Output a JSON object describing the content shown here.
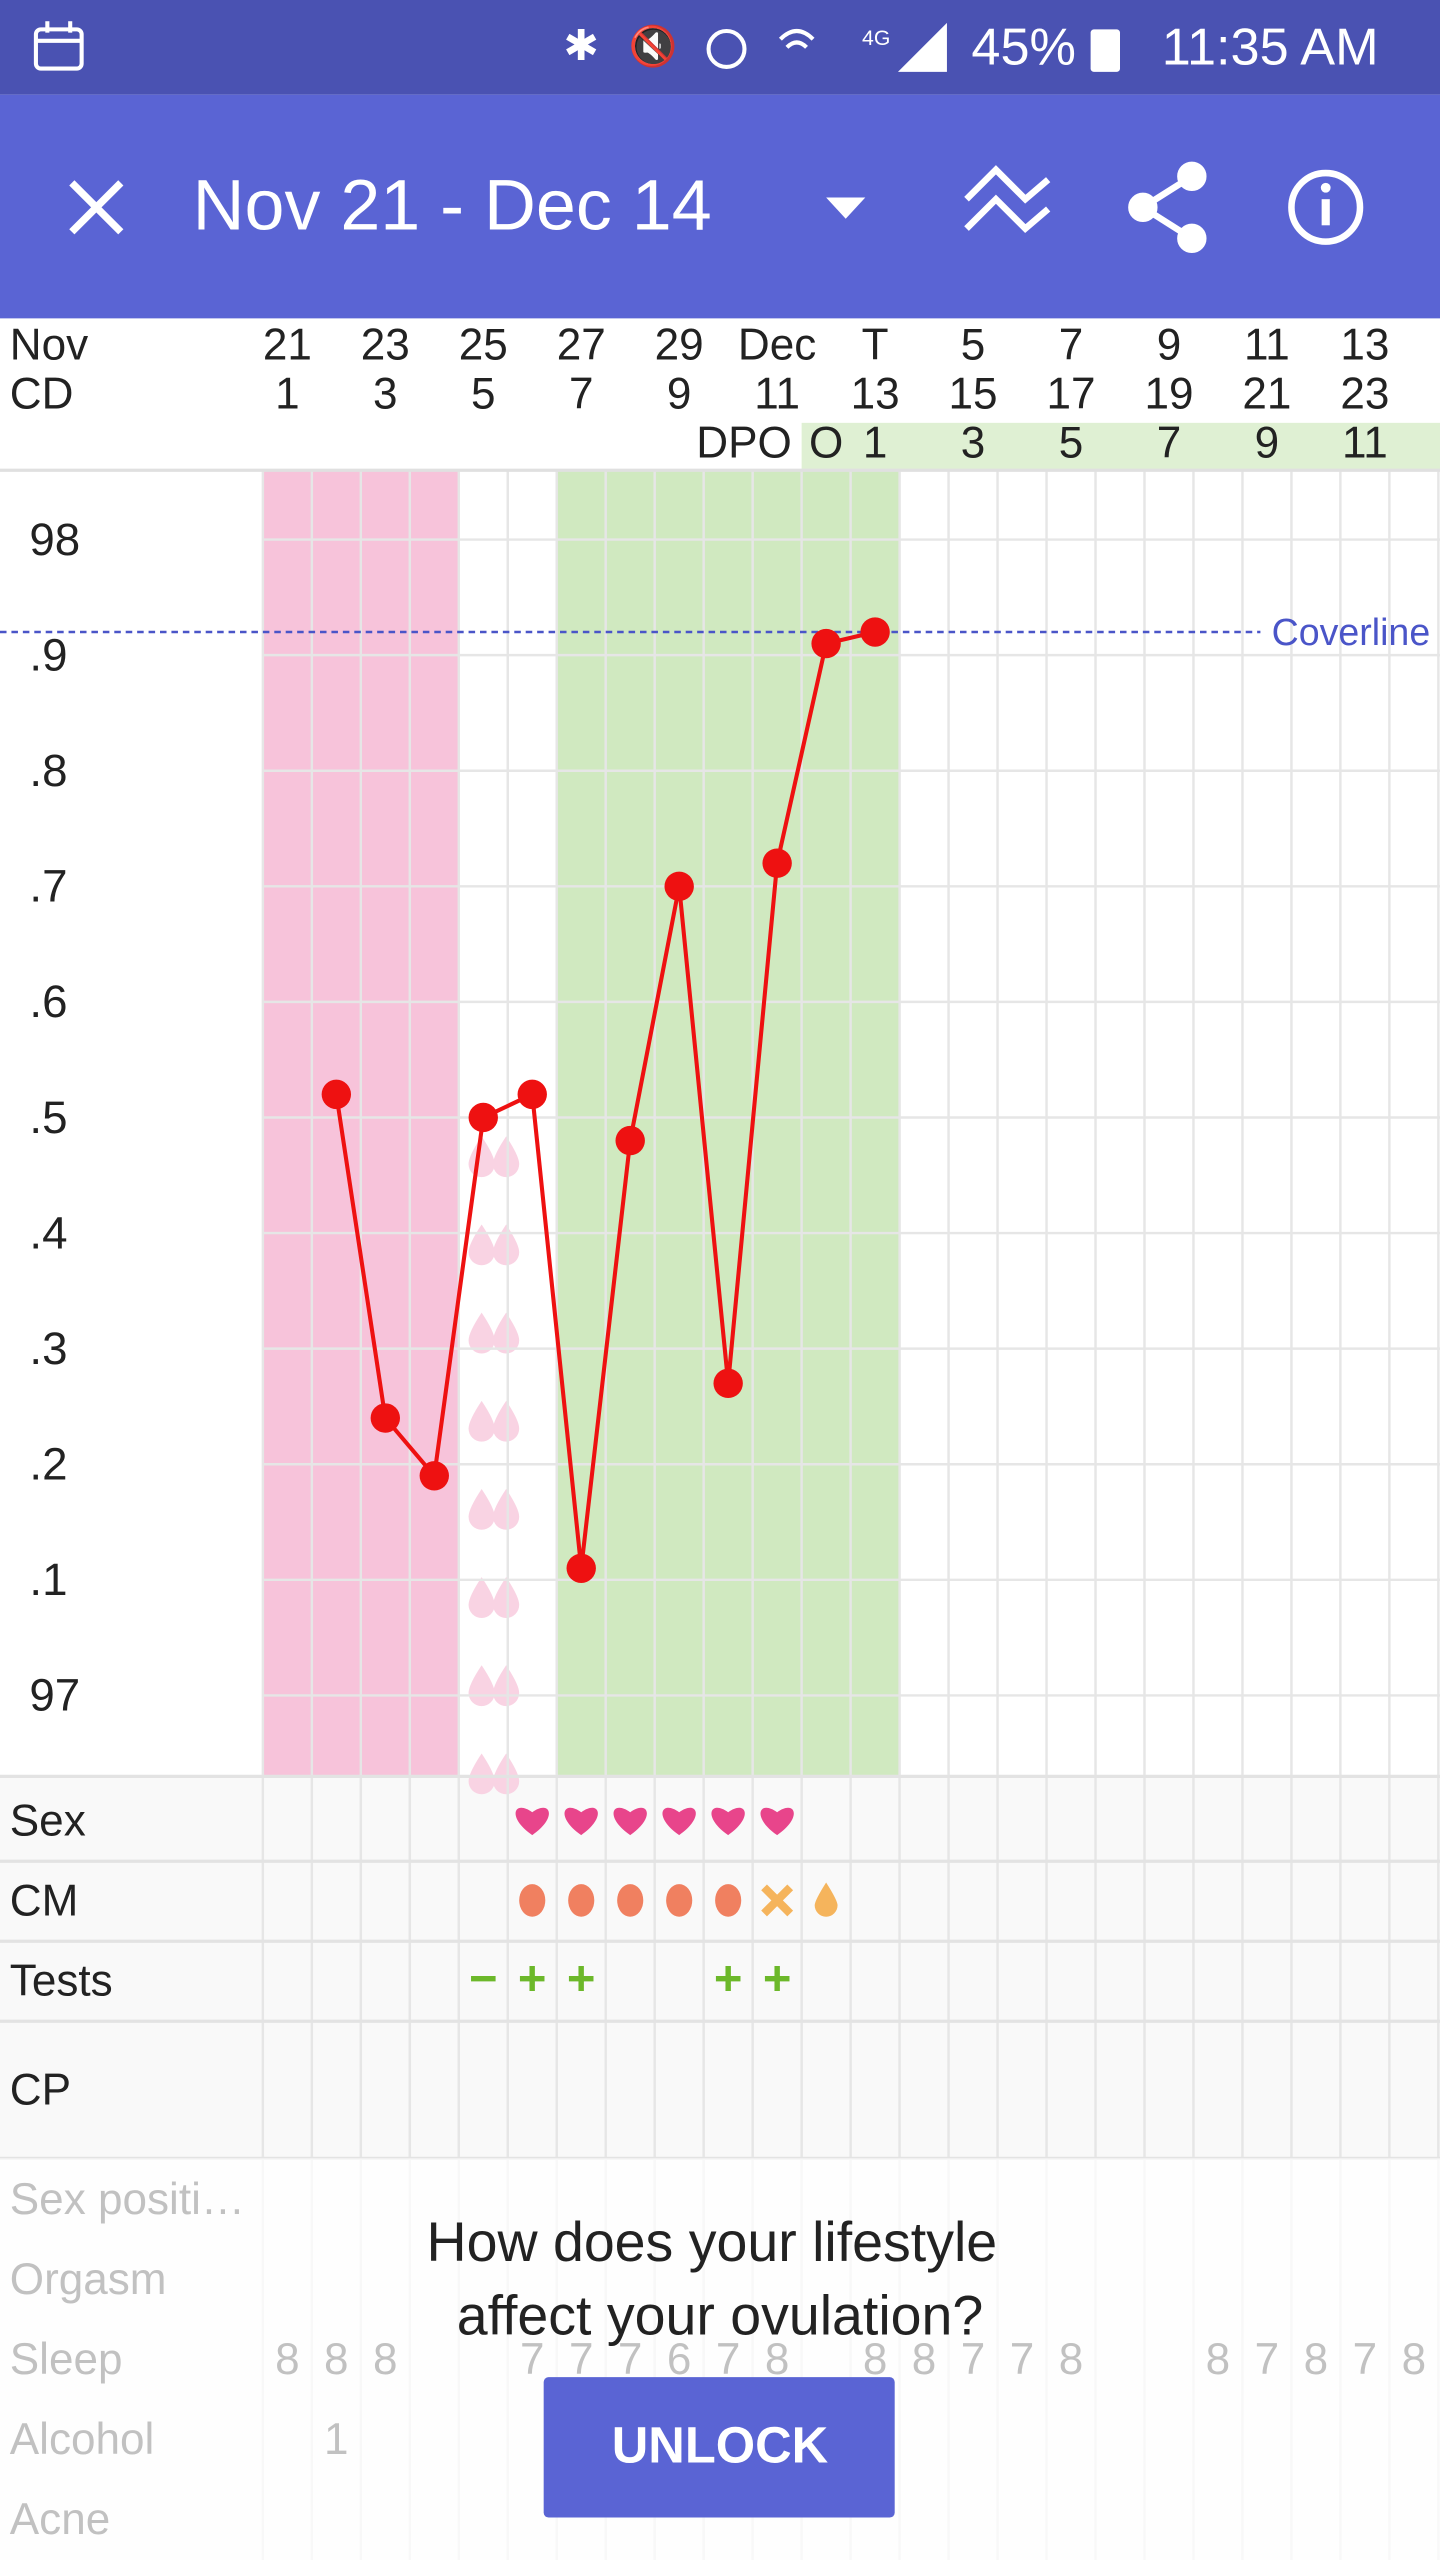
{
  "status_bar": {
    "battery": "45%",
    "time": "11:35 AM"
  },
  "app_bar": {
    "title": "Nov 21 - Dec 14"
  },
  "chart_data": {
    "type": "line",
    "month_label": "Nov",
    "cycle_day_label": "CD",
    "dpo_label": "DPO",
    "categories": [
      "21",
      null,
      "23",
      null,
      "25",
      null,
      "27",
      null,
      "29",
      null,
      "Dec",
      null,
      "T",
      null,
      "5",
      null,
      "7",
      null,
      "9",
      null,
      "11",
      null,
      "13",
      null
    ],
    "category_colors": [
      null,
      null,
      null,
      null,
      null,
      null,
      "#e8141c",
      null,
      null,
      null,
      null,
      null,
      "#5a64d4",
      null,
      null,
      null,
      null,
      null,
      null,
      null,
      "#e8141c",
      null,
      null,
      null
    ],
    "cycle_days": [
      1,
      null,
      3,
      null,
      5,
      null,
      7,
      null,
      9,
      null,
      11,
      null,
      13,
      null,
      15,
      null,
      17,
      null,
      19,
      null,
      21,
      null,
      23,
      null
    ],
    "dpo": [
      null,
      null,
      null,
      null,
      null,
      null,
      null,
      null,
      null,
      null,
      null,
      "O",
      1,
      null,
      3,
      null,
      5,
      null,
      7,
      null,
      9,
      null,
      11,
      null
    ],
    "values": [
      null,
      97.52,
      97.24,
      97.19,
      97.5,
      97.52,
      97.11,
      97.48,
      97.7,
      97.27,
      97.72,
      97.91,
      97.92,
      null,
      null,
      null,
      null,
      null,
      null,
      null,
      null,
      null,
      null,
      null
    ],
    "color": "#ee1111",
    "ylim": [
      96.93,
      98.06
    ],
    "yticks": [
      98,
      {
        "value": 97.9,
        "label": ".9"
      },
      {
        "value": 97.8,
        "label": ".8"
      },
      {
        "value": 97.7,
        "label": ".7"
      },
      {
        "value": 97.6,
        "label": ".6"
      },
      {
        "value": 97.5,
        "label": ".5"
      },
      {
        "value": 97.4,
        "label": ".4"
      },
      {
        "value": 97.3,
        "label": ".3"
      },
      {
        "value": 97.2,
        "label": ".2"
      },
      {
        "value": 97.1,
        "label": ".1"
      },
      97
    ],
    "grid": true,
    "coverline": {
      "label": "Coverline",
      "value": 97.92,
      "color": "#4a55c8"
    },
    "bands": [
      {
        "from": 0,
        "to": 3,
        "color": "#f7c3da"
      },
      {
        "from": 6,
        "to": 12,
        "color": "#d0e9c0"
      }
    ],
    "spotting_days": [
      4
    ]
  },
  "symptoms": [
    {
      "label": "Sex",
      "days": [
        5,
        6,
        7,
        8,
        9,
        10
      ],
      "color": "#e8458b"
    },
    {
      "label": "CM",
      "entries": [
        {
          "day": 5,
          "icon": "egg-white"
        },
        {
          "day": 6,
          "icon": "egg-white"
        },
        {
          "day": 7,
          "icon": "egg-white"
        },
        {
          "day": 8,
          "icon": "egg-white"
        },
        {
          "day": 9,
          "icon": "egg-white"
        },
        {
          "day": 10,
          "icon": "sticky"
        },
        {
          "day": 11,
          "icon": "watery"
        }
      ]
    },
    {
      "label": "Tests",
      "entries": [
        {
          "day": 4,
          "text": "−"
        },
        {
          "day": 5,
          "text": "+"
        },
        {
          "day": 6,
          "text": "+"
        },
        {
          "day": 9,
          "text": "+"
        },
        {
          "day": 10,
          "text": "+"
        }
      ],
      "color": "#6cb82a"
    },
    {
      "label": "CP"
    }
  ],
  "faded_rows": [
    {
      "label": "Sex positi…"
    },
    {
      "label": "Orgasm"
    },
    {
      "label": "Sleep",
      "values": [
        8,
        8,
        8,
        null,
        null,
        7,
        7,
        7,
        6,
        7,
        8,
        null,
        8,
        8,
        7,
        7,
        8,
        null,
        null,
        8,
        7,
        8,
        7,
        8
      ]
    },
    {
      "label": "Alcohol",
      "values": [
        null,
        1,
        null,
        null,
        null,
        null,
        null,
        null,
        null,
        null,
        null,
        null,
        null,
        null,
        null,
        null,
        null,
        null,
        null,
        null,
        null,
        null,
        null,
        null
      ]
    },
    {
      "label": "Acne"
    }
  ],
  "promo": {
    "lines": [
      "How does your lifestyle",
      "affect your ovulation?"
    ],
    "button": "UNLOCK"
  }
}
